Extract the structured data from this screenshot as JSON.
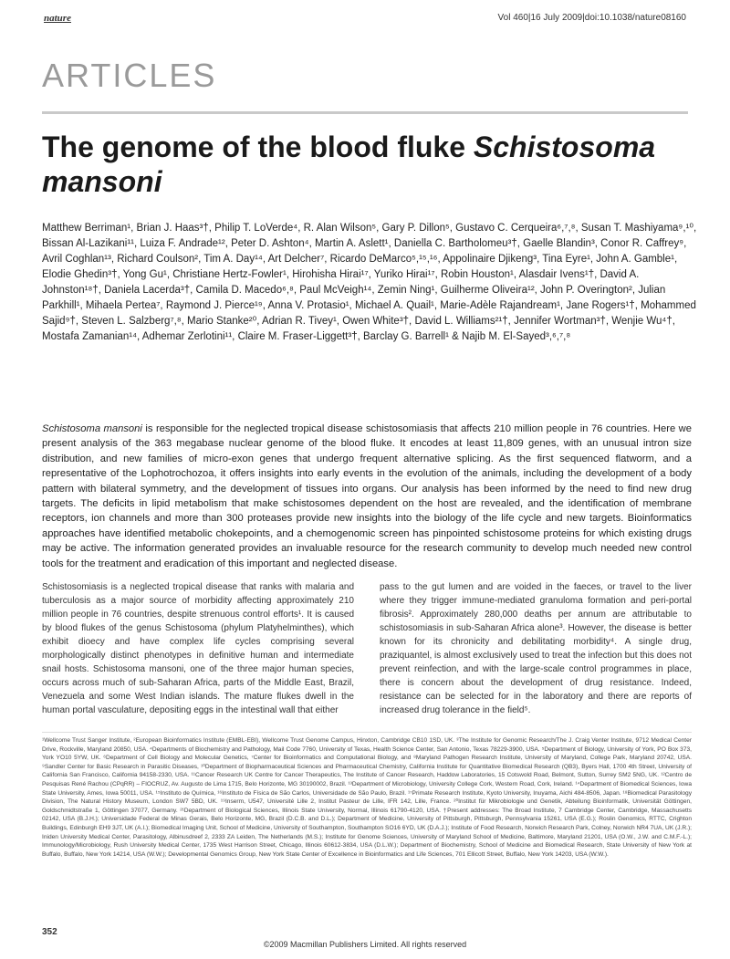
{
  "header": {
    "journal": "nature",
    "citation": "Vol 460|16 July 2009|doi:10.1038/nature08160"
  },
  "section_label": "ARTICLES",
  "title": {
    "main": "The genome of the blood fluke ",
    "italic": "Schistosoma mansoni"
  },
  "authors": "Matthew Berriman¹, Brian J. Haas³†, Philip T. LoVerde⁴, R. Alan Wilson⁵, Gary P. Dillon⁵, Gustavo C. Cerqueira⁶,⁷,⁸, Susan T. Mashiyama⁹,¹⁰, Bissan Al-Lazikani¹¹, Luiza F. Andrade¹², Peter D. Ashton⁴, Martin A. Aslett¹, Daniella C. Bartholomeu³†, Gaelle Blandin³, Conor R. Caffrey⁹, Avril Coghlan¹³, Richard Coulson², Tim A. Day¹⁴, Art Delcher⁷, Ricardo DeMarco⁵,¹⁵,¹⁶, Appolinaire Djikeng³, Tina Eyre¹, John A. Gamble¹, Elodie Ghedin³†, Yong Gu¹, Christiane Hertz-Fowler¹, Hirohisha Hirai¹⁷, Yuriko Hirai¹⁷, Robin Houston¹, Alasdair Ivens¹†, David A. Johnston¹⁸†, Daniela Lacerda³†, Camila D. Macedo⁶,⁸, Paul McVeigh¹⁴, Zemin Ning¹, Guilherme Oliveira¹², John P. Overington², Julian Parkhill¹, Mihaela Pertea⁷, Raymond J. Pierce¹⁹, Anna V. Protasio¹, Michael A. Quail¹, Marie-Adèle Rajandream¹, Jane Rogers¹†, Mohammed Sajid⁹†, Steven L. Salzberg⁷,⁸, Mario Stanke²⁰, Adrian R. Tivey¹, Owen White³†, David L. Williams²¹†, Jennifer Wortman³†, Wenjie Wu⁴†, Mostafa Zamanian¹⁴, Adhemar Zerlotini¹¹, Claire M. Fraser-Liggett³†, Barclay G. Barrell¹ & Najib M. El-Sayed³,⁶,⁷,⁸",
  "abstract": {
    "lead": "Schistosoma mansoni",
    "text": " is responsible for the neglected tropical disease schistosomiasis that affects 210 million people in 76 countries. Here we present analysis of the 363 megabase nuclear genome of the blood fluke. It encodes at least 11,809 genes, with an unusual intron size distribution, and new families of micro-exon genes that undergo frequent alternative splicing. As the first sequenced flatworm, and a representative of the Lophotrochozoa, it offers insights into early events in the evolution of the animals, including the development of a body pattern with bilateral symmetry, and the development of tissues into organs. Our analysis has been informed by the need to find new drug targets. The deficits in lipid metabolism that make schistosomes dependent on the host are revealed, and the identification of membrane receptors, ion channels and more than 300 proteases provide new insights into the biology of the life cycle and new targets. Bioinformatics approaches have identified metabolic chokepoints, and a chemogenomic screen has pinpointed schistosome proteins for which existing drugs may be active. The information generated provides an invaluable resource for the research community to develop much needed new control tools for the treatment and eradication of this important and neglected disease."
  },
  "body": {
    "left": "Schistosomiasis is a neglected tropical disease that ranks with malaria and tuberculosis as a major source of morbidity affecting approximately 210 million people in 76 countries, despite strenuous control efforts¹. It is caused by blood flukes of the genus Schistosoma (phylum Platyhelminthes), which exhibit dioecy and have complex life cycles comprising several morphologically distinct phenotypes in definitive human and intermediate snail hosts. Schistosoma mansoni, one of the three major human species, occurs across much of sub-Saharan Africa, parts of the Middle East, Brazil, Venezuela and some West Indian islands. The mature flukes dwell in the human portal vasculature, depositing eggs in the intestinal wall that either",
    "right": "pass to the gut lumen and are voided in the faeces, or travel to the liver where they trigger immune-mediated granuloma formation and peri-portal fibrosis². Approximately 280,000 deaths per annum are attributable to schistosomiasis in sub-Saharan Africa alone³. However, the disease is better known for its chronicity and debilitating morbidity⁴. A single drug, praziquantel, is almost exclusively used to treat the infection but this does not prevent reinfection, and with the large-scale control programmes in place, there is concern about the development of drug resistance. Indeed, resistance can be selected for in the laboratory and there are reports of increased drug tolerance in the field⁵."
  },
  "footnotes": "¹Wellcome Trust Sanger Institute, ²European Bioinformatics Institute (EMBL-EBI), Wellcome Trust Genome Campus, Hinxton, Cambridge CB10 1SD, UK. ³The Institute for Genomic Research/The J. Craig Venter Institute, 9712 Medical Center Drive, Rockville, Maryland 20850, USA. ⁴Departments of Biochemistry and Pathology, Mail Code 7760, University of Texas, Health Science Center, San Antonio, Texas 78229-3900, USA. ⁵Department of Biology, University of York, PO Box 373, York YO10 5YW, UK. ⁶Department of Cell Biology and Molecular Genetics, ⁷Center for Bioinformatics and Computational Biology, and ⁸Maryland Pathogen Research Institute, University of Maryland, College Park, Maryland 20742, USA. ⁹Sandler Center for Basic Research in Parasitic Diseases, ¹⁰Department of Biopharmaceutical Sciences and Pharmaceutical Chemistry, California Institute for Quantitative Biomedical Research (QB3), Byers Hall, 1700 4th Street, University of California San Francisco, California 94158-2330, USA. ¹¹Cancer Research UK Centre for Cancer Therapeutics, The Institute of Cancer Research, Haddow Laboratories, 15 Cotswold Road, Belmont, Sutton, Surrey SM2 5NG, UK. ¹²Centro de Pesquisas René Rachou (CPqRR) – FIOCRUZ, Av. Augusto de Lima 1715, Belo Horizonte, MG 30190002, Brazil. ¹³Department of Microbiology, University College Cork, Western Road, Cork, Ireland. ¹⁴Department of Biomedical Sciences, Iowa State University, Ames, Iowa 50011, USA. ¹⁵Instituto de Química, ¹⁶Instituto de Física de São Carlos, Universidade de São Paulo, Brazil. ¹⁷Primate Research Institute, Kyoto University, Inuyama, Aichi 484-8506, Japan. ¹⁸Biomedical Parasitology Division, The Natural History Museum, London SW7 5BD, UK. ¹⁹Inserm, U547, Université Lille 2, Institut Pasteur de Lille, IFR 142, Lille, France. ²⁰Institut für Mikrobiologie und Genetik, Abteilung Bioinformatik, Universität Göttingen, Goldschmidtstraße 1, Göttingen 37077, Germany. ²¹Department of Biological Sciences, Illinois State University, Normal, Illinois 61790-4120, USA. †Present addresses: The Broad Institute, 7 Cambridge Center, Cambridge, Massachusetts 02142, USA (B.J.H.); Universidade Federal de Minas Gerais, Belo Horizonte, MG, Brazil (D.C.B. and D.L.); Department of Medicine, University of Pittsburgh, Pittsburgh, Pennsylvania 15261, USA (E.G.); Roslin Genomics, RTTC, Crighton Buildings, Edinburgh EH9 3JT, UK (A.I.); Biomedical Imaging Unit, School of Medicine, University of Southampton, Southampton SO16 6YD, UK (D.A.J.); Institute of Food Research, Norwich Research Park, Colney, Norwich NR4 7UA, UK (J.R.); Iniden University Medical Center, Parasitology, Albinusdreef 2, 2333 ZA Leiden, The Netherlands (M.S.); Institute for Genome Sciences, University of Maryland School of Medicine, Baltimore, Maryland 21201, USA (O.W., J.W. and C.M.F.-L.); Immunology/Microbiology, Rush University Medical Center, 1735 West Harrison Street, Chicago, Illinois 60612-3834, USA (D.L.W.); Department of Biochemistry, School of Medicine and Biomedical Research, State University of New York at Buffalo, Buffalo, New York 14214, USA (W.W.); Developmental Genomics Group, New York State Center of Excellence in Bioinformatics and Life Sciences, 701 Ellicott Street, Buffalo, New York 14203, USA (W.W.).",
  "page_number": "352",
  "copyright": "©2009 Macmillan Publishers Limited. All rights reserved"
}
